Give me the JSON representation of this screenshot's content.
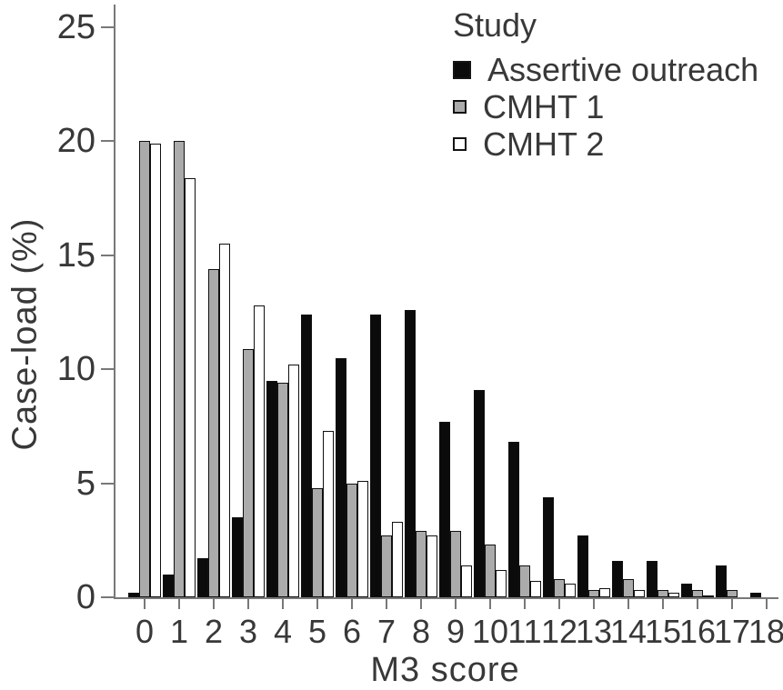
{
  "chart_data": {
    "type": "bar",
    "title": "",
    "xlabel": "M3 score",
    "ylabel": "Case-load (%)",
    "legend_title": "Study",
    "legend_position": "top-right",
    "grid": false,
    "ylim": [
      0,
      26
    ],
    "yticks": [
      0,
      5,
      10,
      15,
      20,
      25
    ],
    "categories": [
      "0",
      "1",
      "2",
      "3",
      "4",
      "5",
      "6",
      "7",
      "8",
      "9",
      "10",
      "11",
      "12",
      "13",
      "14",
      "15",
      "16",
      "17",
      "18"
    ],
    "series": [
      {
        "name": "Assertive outreach",
        "color": "#0b0b0b",
        "values": [
          0.2,
          1.0,
          1.7,
          3.5,
          9.5,
          12.4,
          10.5,
          12.4,
          12.6,
          7.7,
          9.1,
          6.8,
          4.4,
          2.7,
          1.6,
          1.6,
          0.6,
          1.4,
          0.2
        ]
      },
      {
        "name": "CMHT 1",
        "color": "#ababab",
        "values": [
          20.0,
          20.0,
          14.4,
          10.9,
          9.4,
          4.8,
          5.0,
          2.7,
          2.9,
          2.9,
          2.3,
          1.4,
          0.8,
          0.3,
          0.8,
          0.3,
          0.3,
          0.3,
          0.0
        ]
      },
      {
        "name": "CMHT 2",
        "color": "#ffffff",
        "values": [
          19.9,
          18.4,
          15.5,
          12.8,
          10.2,
          7.3,
          5.1,
          3.3,
          2.7,
          1.4,
          1.2,
          0.7,
          0.6,
          0.4,
          0.3,
          0.2,
          0.1,
          0.0,
          0.0
        ]
      }
    ]
  }
}
